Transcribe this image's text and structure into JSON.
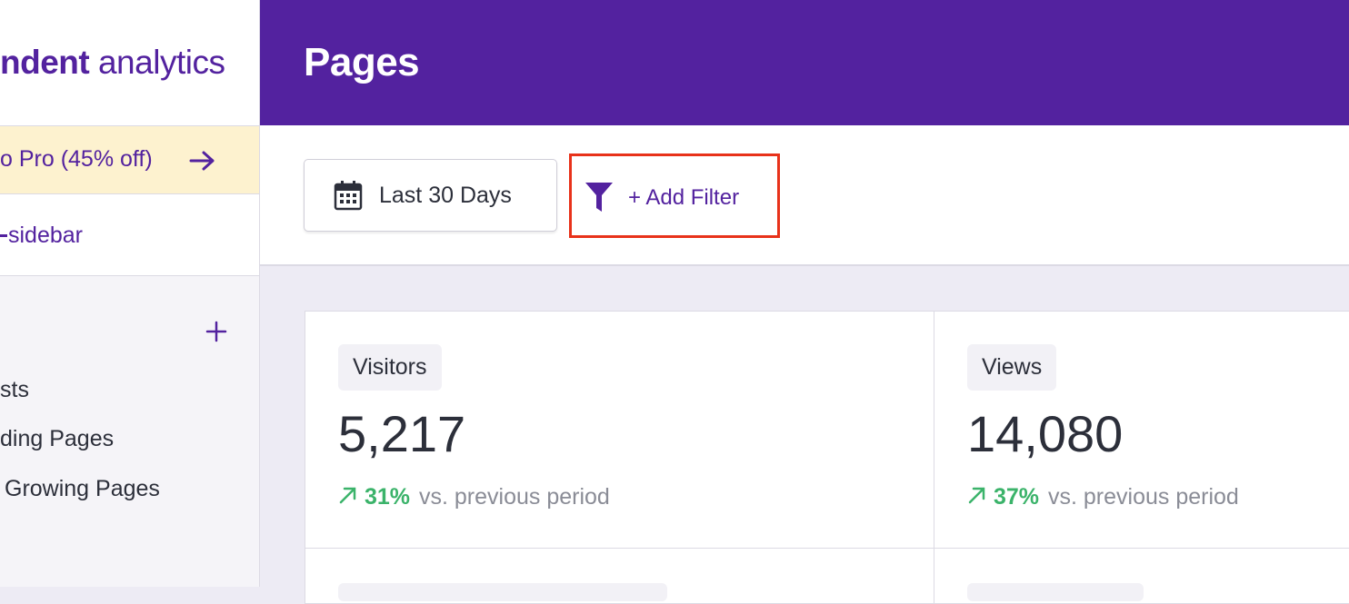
{
  "sidebar": {
    "logo": {
      "bold": "ndent",
      "regular": "analytics"
    },
    "promo": "o Pro (45% off)",
    "toggle": "sidebar",
    "reports": [
      "sts",
      "ding Pages",
      "Growing Pages"
    ]
  },
  "header": {
    "title": "Pages"
  },
  "toolbar": {
    "date_range": "Last 30 Days",
    "filter": "+ Add Filter"
  },
  "stats": [
    {
      "label": "Visitors",
      "value": "5,217",
      "change": "31%",
      "comparison": "vs. previous period"
    },
    {
      "label": "Views",
      "value": "14,080",
      "change": "37%",
      "comparison": "vs. previous period"
    }
  ]
}
